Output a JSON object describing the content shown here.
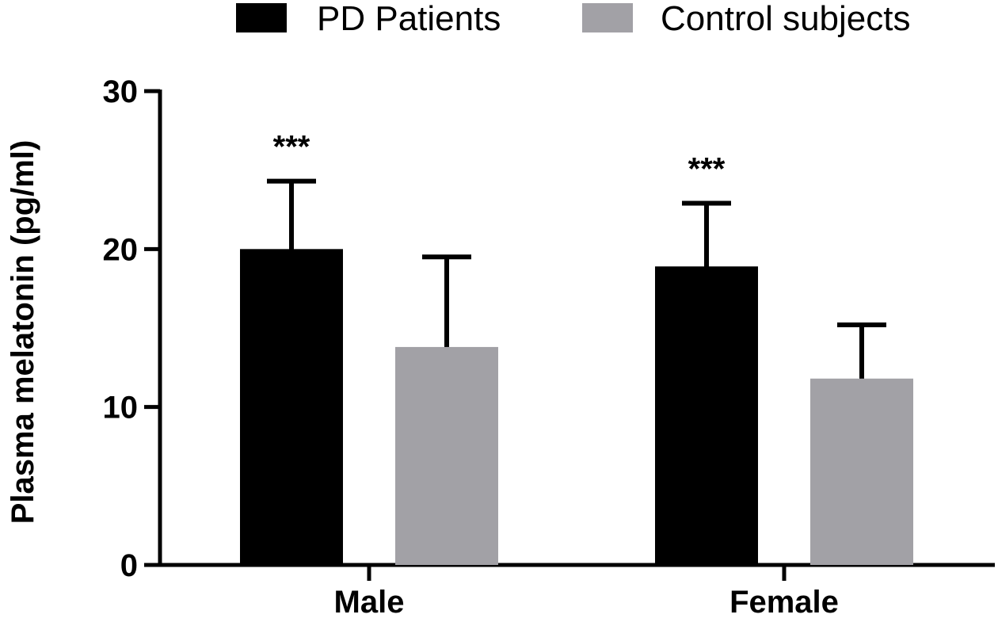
{
  "chart_data": {
    "type": "bar",
    "title": "",
    "xlabel": "",
    "ylabel": "Plasma melatonin (pg/ml)",
    "ylim": [
      0,
      30
    ],
    "yticks": [
      0,
      10,
      20,
      30
    ],
    "categories": [
      "Male",
      "Female"
    ],
    "series": [
      {
        "name": "PD Patients",
        "color": "#000000",
        "values": [
          20.0,
          18.9
        ],
        "errors": [
          4.3,
          4.0
        ]
      },
      {
        "name": "Control subjects",
        "color": "#a2a1a6",
        "values": [
          13.8,
          11.8
        ],
        "errors": [
          5.7,
          3.4
        ]
      }
    ],
    "annotations": [
      {
        "category": "Male",
        "text": "***"
      },
      {
        "category": "Female",
        "text": "***"
      }
    ],
    "legend_position": "top"
  }
}
